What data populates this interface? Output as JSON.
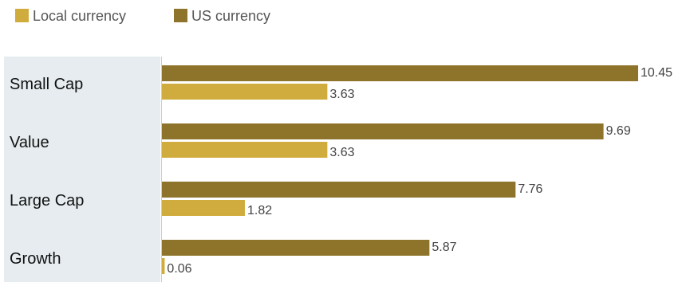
{
  "colors": {
    "local": "#d0ac3e",
    "us": "#8d742a",
    "category_band": "#e6ecef",
    "axis": "#cccccc"
  },
  "chart_data": {
    "type": "bar",
    "orientation": "horizontal",
    "categories": [
      "Small Cap",
      "Value",
      "Large Cap",
      "Growth"
    ],
    "series": [
      {
        "name": "US currency",
        "values": [
          10.45,
          9.69,
          7.76,
          5.87
        ]
      },
      {
        "name": "Local currency",
        "values": [
          3.63,
          3.63,
          1.82,
          0.06
        ]
      }
    ],
    "legend": [
      "Local currency",
      "US currency"
    ],
    "legend_position": "top-left",
    "xlim": [
      0,
      10.45
    ],
    "grid": false,
    "title": "",
    "xlabel": "",
    "ylabel": ""
  }
}
